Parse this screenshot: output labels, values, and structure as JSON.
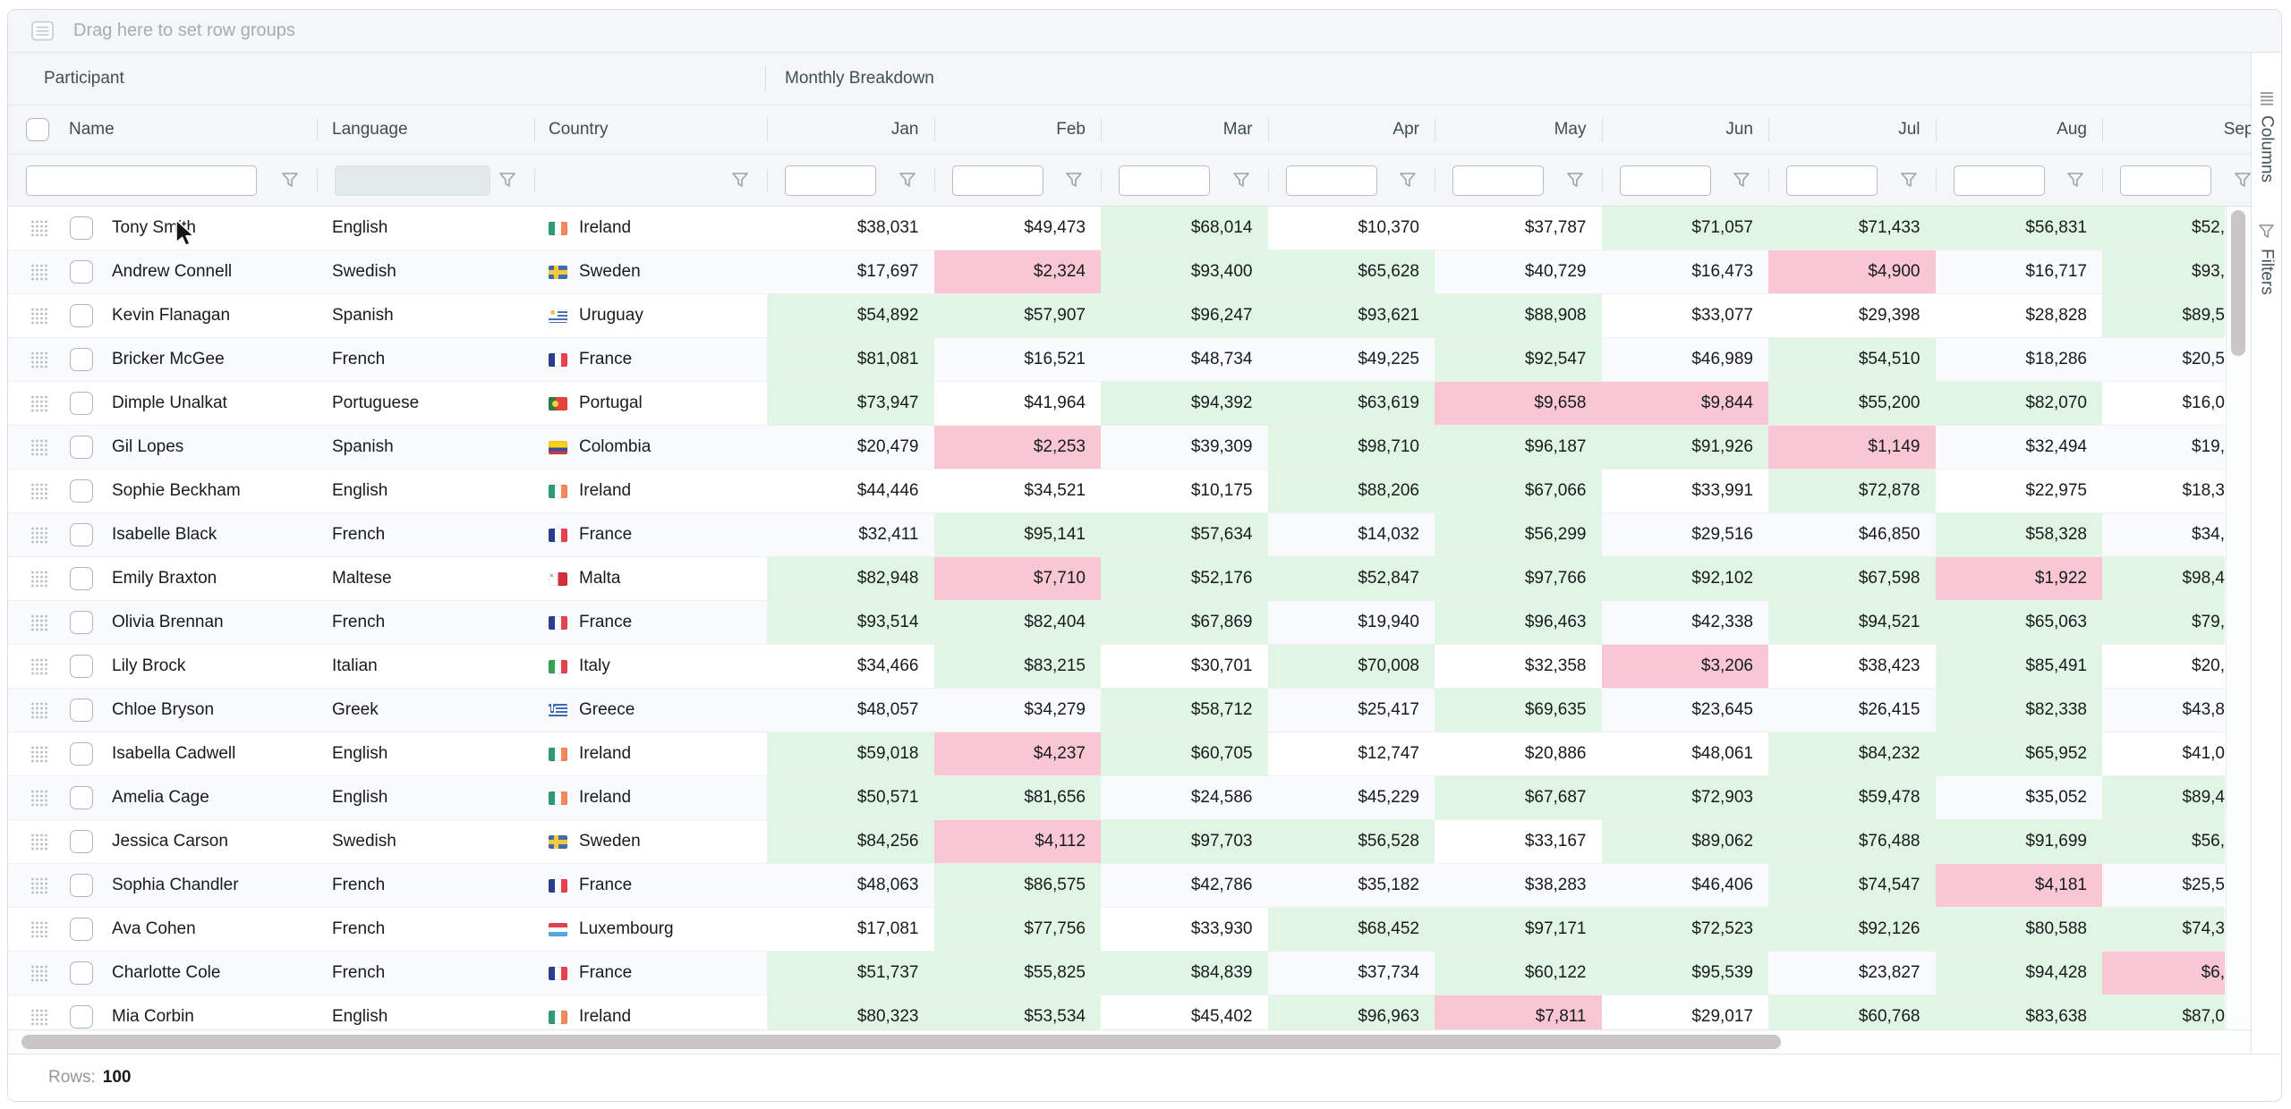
{
  "toolbar": {
    "drag_hint": "Drag here to set row groups"
  },
  "groups": {
    "participant": "Participant",
    "monthly": "Monthly Breakdown"
  },
  "columns": {
    "name": "Name",
    "language": "Language",
    "country": "Country",
    "months": [
      "Jan",
      "Feb",
      "Mar",
      "Apr",
      "May",
      "Jun",
      "Jul",
      "Aug",
      "Sep"
    ]
  },
  "filters": {
    "name_value": "",
    "language_disabled": true,
    "month_values": [
      "",
      "",
      "",
      "",
      "",
      "",
      "",
      "",
      ""
    ]
  },
  "side_panel": [
    {
      "label": "Columns",
      "icon": "columns-icon"
    },
    {
      "label": "Filters",
      "icon": "filter-icon"
    }
  ],
  "status_bar": {
    "rows_label": "Rows:",
    "rows_value": "100"
  },
  "colors": {
    "green_cell": "#e1f5e5",
    "pink_cell": "#f9c7d4",
    "chrome": "#f4f7f7"
  },
  "rows": [
    {
      "name": "Tony Smith",
      "language": "English",
      "country": "Ireland",
      "flag": "ie",
      "values": [
        "$38,031",
        "$49,473",
        "$68,014",
        "$10,370",
        "$37,787",
        "$71,057",
        "$71,433",
        "$56,831",
        "$52,"
      ]
    },
    {
      "name": "Andrew Connell",
      "language": "Swedish",
      "country": "Sweden",
      "flag": "se",
      "values": [
        "$17,697",
        "$2,324",
        "$93,400",
        "$65,628",
        "$40,729",
        "$16,473",
        "$4,900",
        "$16,717",
        "$93,"
      ]
    },
    {
      "name": "Kevin Flanagan",
      "language": "Spanish",
      "country": "Uruguay",
      "flag": "uy",
      "values": [
        "$54,892",
        "$57,907",
        "$96,247",
        "$93,621",
        "$88,908",
        "$33,077",
        "$29,398",
        "$28,828",
        "$89,5"
      ]
    },
    {
      "name": "Bricker McGee",
      "language": "French",
      "country": "France",
      "flag": "fr",
      "values": [
        "$81,081",
        "$16,521",
        "$48,734",
        "$49,225",
        "$92,547",
        "$46,989",
        "$54,510",
        "$18,286",
        "$20,5"
      ]
    },
    {
      "name": "Dimple Unalkat",
      "language": "Portuguese",
      "country": "Portugal",
      "flag": "pt",
      "values": [
        "$73,947",
        "$41,964",
        "$94,392",
        "$63,619",
        "$9,658",
        "$9,844",
        "$55,200",
        "$82,070",
        "$16,0"
      ]
    },
    {
      "name": "Gil Lopes",
      "language": "Spanish",
      "country": "Colombia",
      "flag": "co",
      "values": [
        "$20,479",
        "$2,253",
        "$39,309",
        "$98,710",
        "$96,187",
        "$91,926",
        "$1,149",
        "$32,494",
        "$19,"
      ]
    },
    {
      "name": "Sophie Beckham",
      "language": "English",
      "country": "Ireland",
      "flag": "ie",
      "values": [
        "$44,446",
        "$34,521",
        "$10,175",
        "$88,206",
        "$67,066",
        "$33,991",
        "$72,878",
        "$22,975",
        "$18,3"
      ]
    },
    {
      "name": "Isabelle Black",
      "language": "French",
      "country": "France",
      "flag": "fr",
      "values": [
        "$32,411",
        "$95,141",
        "$57,634",
        "$14,032",
        "$56,299",
        "$29,516",
        "$46,850",
        "$58,328",
        "$34,"
      ]
    },
    {
      "name": "Emily Braxton",
      "language": "Maltese",
      "country": "Malta",
      "flag": "mt",
      "values": [
        "$82,948",
        "$7,710",
        "$52,176",
        "$52,847",
        "$97,766",
        "$92,102",
        "$67,598",
        "$1,922",
        "$98,4"
      ]
    },
    {
      "name": "Olivia Brennan",
      "language": "French",
      "country": "France",
      "flag": "fr",
      "values": [
        "$93,514",
        "$82,404",
        "$67,869",
        "$19,940",
        "$96,463",
        "$42,338",
        "$94,521",
        "$65,063",
        "$79,"
      ]
    },
    {
      "name": "Lily Brock",
      "language": "Italian",
      "country": "Italy",
      "flag": "it",
      "values": [
        "$34,466",
        "$83,215",
        "$30,701",
        "$70,008",
        "$32,358",
        "$3,206",
        "$38,423",
        "$85,491",
        "$20,"
      ]
    },
    {
      "name": "Chloe Bryson",
      "language": "Greek",
      "country": "Greece",
      "flag": "gr",
      "values": [
        "$48,057",
        "$34,279",
        "$58,712",
        "$25,417",
        "$69,635",
        "$23,645",
        "$26,415",
        "$82,338",
        "$43,8"
      ]
    },
    {
      "name": "Isabella Cadwell",
      "language": "English",
      "country": "Ireland",
      "flag": "ie",
      "values": [
        "$59,018",
        "$4,237",
        "$60,705",
        "$12,747",
        "$20,886",
        "$48,061",
        "$84,232",
        "$65,952",
        "$41,0"
      ]
    },
    {
      "name": "Amelia Cage",
      "language": "English",
      "country": "Ireland",
      "flag": "ie",
      "values": [
        "$50,571",
        "$81,656",
        "$24,586",
        "$45,229",
        "$67,687",
        "$72,903",
        "$59,478",
        "$35,052",
        "$89,4"
      ]
    },
    {
      "name": "Jessica Carson",
      "language": "Swedish",
      "country": "Sweden",
      "flag": "se",
      "values": [
        "$84,256",
        "$4,112",
        "$97,703",
        "$56,528",
        "$33,167",
        "$89,062",
        "$76,488",
        "$91,699",
        "$56,"
      ]
    },
    {
      "name": "Sophia Chandler",
      "language": "French",
      "country": "France",
      "flag": "fr",
      "values": [
        "$48,063",
        "$86,575",
        "$42,786",
        "$35,182",
        "$38,283",
        "$46,406",
        "$74,547",
        "$4,181",
        "$25,5"
      ]
    },
    {
      "name": "Ava Cohen",
      "language": "French",
      "country": "Luxembourg",
      "flag": "lu",
      "values": [
        "$17,081",
        "$77,756",
        "$33,930",
        "$68,452",
        "$97,171",
        "$72,523",
        "$92,126",
        "$80,588",
        "$74,3"
      ]
    },
    {
      "name": "Charlotte Cole",
      "language": "French",
      "country": "France",
      "flag": "fr",
      "values": [
        "$51,737",
        "$55,825",
        "$84,839",
        "$37,734",
        "$60,122",
        "$95,539",
        "$23,827",
        "$94,428",
        "$6,"
      ]
    },
    {
      "name": "Mia Corbin",
      "language": "English",
      "country": "Ireland",
      "flag": "ie",
      "values": [
        "$80,323",
        "$53,534",
        "$45,402",
        "$96,963",
        "$7,811",
        "$29,017",
        "$60,768",
        "$83,638",
        "$87,0"
      ]
    }
  ],
  "partial_row": {
    "cell_tints": [
      "green",
      "",
      "green",
      "",
      "",
      "green",
      "",
      "",
      "green"
    ]
  }
}
